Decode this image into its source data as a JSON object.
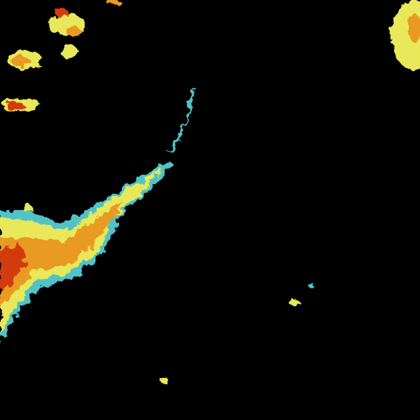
{
  "image": {
    "background_color": "#000000",
    "palette": {
      "weak": "#1a7fd4",
      "light": "#4fc3c8",
      "moderate": "#e8e85a",
      "heavy": "#e89a20",
      "intense": "#d23a10"
    }
  }
}
